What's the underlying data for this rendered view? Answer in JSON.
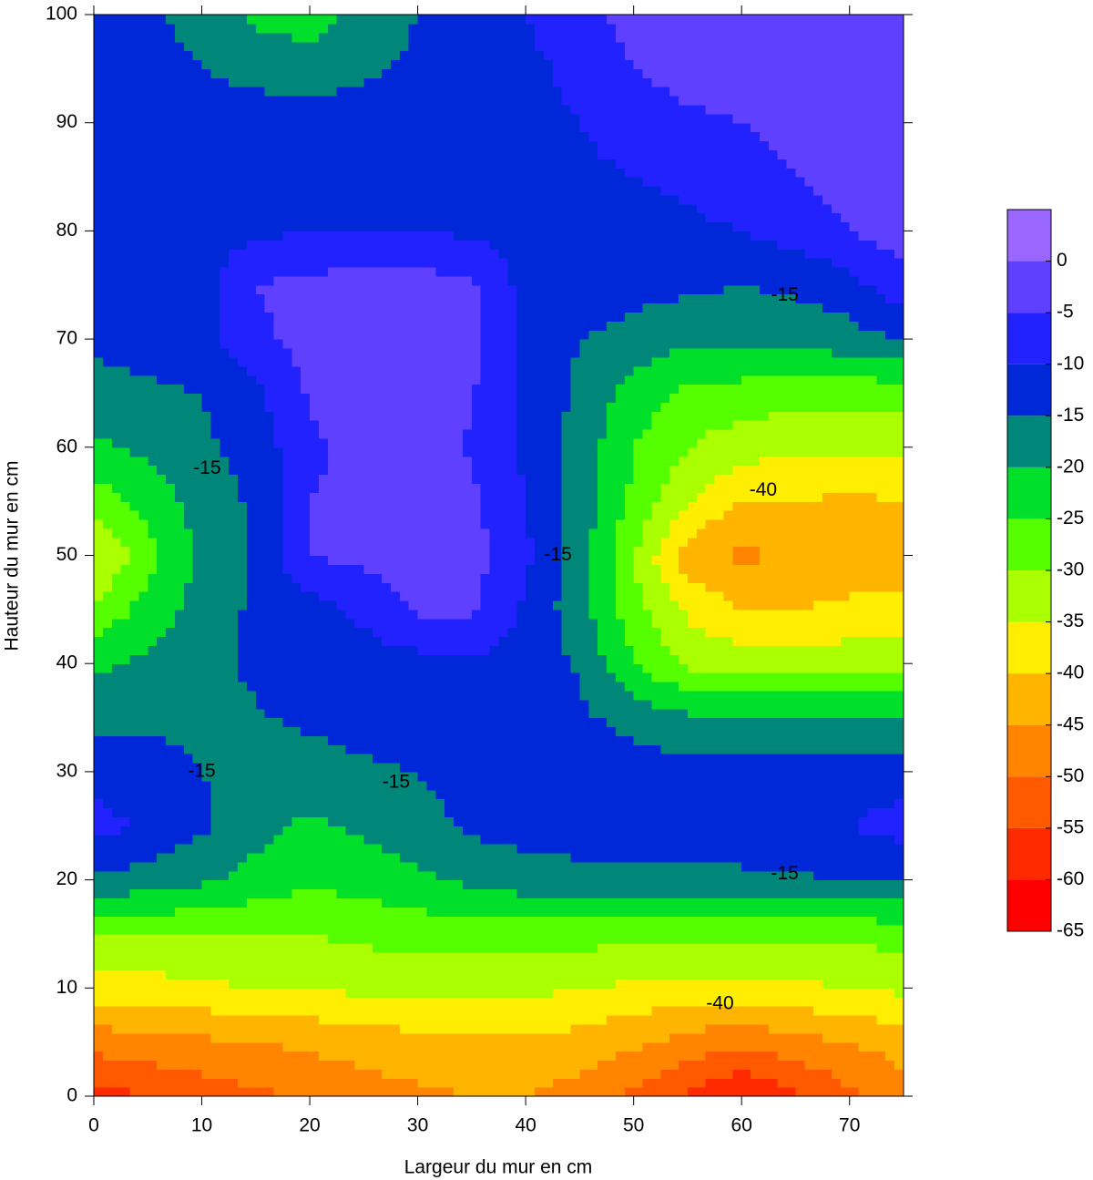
{
  "chart_data": {
    "type": "contour",
    "x_label": "Largeur du mur en cm",
    "y_label": "Hauteur du mur en cm",
    "xlim": [
      0,
      75
    ],
    "ylim": [
      0,
      100
    ],
    "xticks": [
      0,
      10,
      20,
      30,
      40,
      50,
      60,
      70
    ],
    "yticks": [
      0,
      10,
      20,
      30,
      40,
      50,
      60,
      70,
      80,
      90,
      100
    ],
    "x": [
      0,
      5,
      10,
      15,
      20,
      25,
      30,
      35,
      40,
      45,
      50,
      55,
      60,
      65,
      70,
      75
    ],
    "y": [
      0,
      5,
      10,
      15,
      20,
      25,
      30,
      35,
      40,
      45,
      50,
      55,
      60,
      65,
      70,
      75,
      80,
      85,
      90,
      95,
      100
    ],
    "z": [
      [
        -57,
        -55,
        -53,
        -51,
        -49,
        -47,
        -46,
        -45,
        -45,
        -47,
        -51,
        -56,
        -60,
        -56,
        -51,
        -47
      ],
      [
        -48,
        -47,
        -46,
        -45,
        -44,
        -43,
        -42,
        -41,
        -41,
        -42,
        -44,
        -47,
        -49,
        -47,
        -45,
        -43
      ],
      [
        -37,
        -37,
        -36,
        -35,
        -35,
        -34,
        -33,
        -33,
        -34,
        -35,
        -36,
        -37,
        -37,
        -36,
        -35,
        -34
      ],
      [
        -30,
        -30,
        -30,
        -30,
        -30,
        -29,
        -28,
        -28,
        -28,
        -28,
        -29,
        -29,
        -29,
        -29,
        -29,
        -28
      ],
      [
        -16,
        -17,
        -19,
        -22,
        -24,
        -23,
        -21,
        -19,
        -17,
        -17,
        -17,
        -16.5,
        -16,
        -15.5,
        -15,
        -14.5
      ],
      [
        -8,
        -11,
        -14,
        -18,
        -21,
        -19,
        -17,
        -14,
        -13,
        -12,
        -12,
        -11.5,
        -12,
        -12,
        -10,
        -8
      ],
      [
        -12,
        -13,
        -15,
        -17,
        -17.5,
        -16,
        -15,
        -13,
        -12,
        -12,
        -12.5,
        -13,
        -13,
        -13,
        -12.5,
        -12
      ],
      [
        -16,
        -16,
        -16,
        -15.5,
        -14,
        -12.5,
        -12,
        -12,
        -12,
        -14,
        -17,
        -19,
        -19.5,
        -20,
        -20,
        -20
      ],
      [
        -21,
        -19,
        -17,
        -14,
        -12.5,
        -12,
        -12,
        -11,
        -12,
        -15.5,
        -25,
        -31,
        -32,
        -32,
        -32,
        -32
      ],
      [
        -29,
        -23,
        -18,
        -14,
        -12,
        -9,
        -4,
        -4,
        -11,
        -18,
        -28,
        -36,
        -40,
        -40,
        -39,
        -38
      ],
      [
        -36,
        -27,
        -19,
        -14,
        -5,
        -3.5,
        -3,
        -3,
        -9,
        -18,
        -30,
        -43,
        -46,
        -44,
        -43,
        -45
      ],
      [
        -28,
        -23,
        -18,
        -14,
        -5,
        -4,
        -3,
        -4,
        -10,
        -17,
        -26,
        -35,
        -40,
        -40,
        -41,
        -40
      ],
      [
        -21,
        -19,
        -16,
        -13,
        -6,
        -3,
        -3,
        -5.5,
        -11,
        -17,
        -25,
        -30,
        -33,
        -34,
        -34,
        -34
      ],
      [
        -17,
        -16,
        -15,
        -11,
        -4.5,
        -3,
        -3,
        -4.5,
        -11,
        -16,
        -22,
        -26,
        -27,
        -28,
        -28,
        -28
      ],
      [
        -14,
        -13,
        -12,
        -6,
        -3.5,
        -3,
        -3,
        -4,
        -11,
        -15,
        -17,
        -19,
        -19,
        -18,
        -17,
        -15
      ],
      [
        -11,
        -12,
        -12,
        -5,
        -3.5,
        -3,
        -3,
        -4,
        -12,
        -12,
        -13,
        -14,
        -15,
        -14,
        -12,
        -6
      ],
      [
        -12,
        -12,
        -12,
        -11,
        -10,
        -10,
        -10,
        -11,
        -12,
        -12,
        -12,
        -11,
        -10,
        -8,
        -5,
        -3
      ],
      [
        -12,
        -12,
        -12,
        -12,
        -12,
        -12,
        -12,
        -11,
        -11,
        -11,
        -10,
        -9,
        -7,
        -5,
        -3,
        -3
      ],
      [
        -13,
        -12,
        -12,
        -12,
        -12,
        -12,
        -12,
        -12,
        -11,
        -10,
        -8,
        -6,
        -5,
        -3.5,
        -3,
        -3
      ],
      [
        -12,
        -13,
        -15,
        -17,
        -18,
        -16,
        -14,
        -12,
        -11,
        -9,
        -5,
        -3,
        -3,
        -3,
        -3,
        -3
      ],
      [
        -12,
        -14,
        -17,
        -21,
        -22,
        -18,
        -15,
        -12,
        -10,
        -7,
        -3,
        -3,
        -3,
        -3,
        -3,
        -3
      ]
    ],
    "zlim": [
      -65,
      5
    ],
    "zticks": [
      0,
      -5,
      -10,
      -15,
      -20,
      -25,
      -30,
      -35,
      -40,
      -45,
      -50,
      -55,
      -60,
      -65
    ],
    "band_step": 5,
    "colors": [
      "#ff0000",
      "#ff2a00",
      "#ff5a00",
      "#ff8400",
      "#ffb400",
      "#ffee00",
      "#aaff00",
      "#55ff00",
      "#00e02a",
      "#00877a",
      "#0028d8",
      "#2222ff",
      "#6040ff",
      "#9966ff"
    ],
    "contour_labels": [
      {
        "text": "-15",
        "x": 10.5,
        "y": 58
      },
      {
        "text": "-15",
        "x": 10,
        "y": 30
      },
      {
        "text": "-15",
        "x": 28,
        "y": 29
      },
      {
        "text": "-15",
        "x": 43,
        "y": 50
      },
      {
        "text": "-15",
        "x": 64,
        "y": 74
      },
      {
        "text": "-15",
        "x": 64,
        "y": 20.5
      },
      {
        "text": "-40",
        "x": 62,
        "y": 56
      },
      {
        "text": "-40",
        "x": 58,
        "y": 8.5
      }
    ]
  }
}
